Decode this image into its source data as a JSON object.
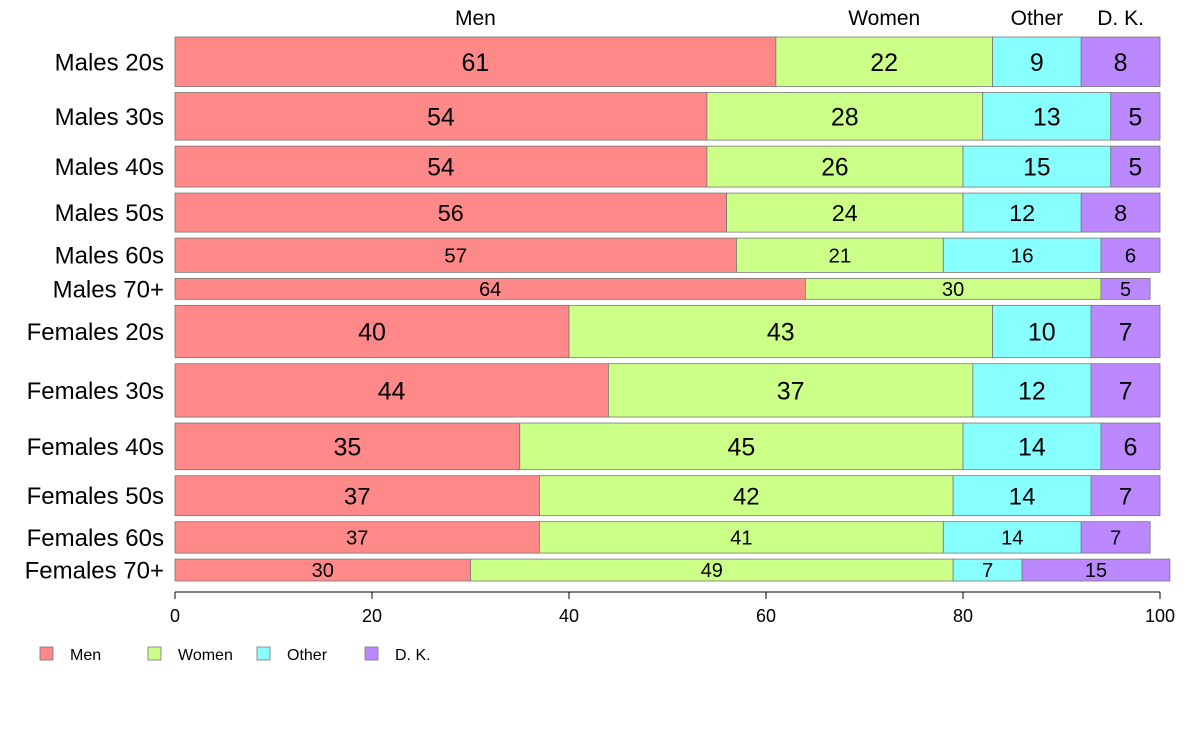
{
  "chart_data": {
    "type": "bar",
    "orientation": "horizontal",
    "stacked": true,
    "categories": [
      "Males 20s",
      "Males 30s",
      "Males 40s",
      "Males 50s",
      "Males 60s",
      "Males 70+",
      "Females 20s",
      "Females 30s",
      "Females 40s",
      "Females 50s",
      "Females 60s",
      "Females 70+"
    ],
    "category_weights": [
      52,
      50,
      43,
      41,
      36,
      22,
      55,
      56,
      49,
      42,
      33,
      23
    ],
    "series": [
      {
        "name": "Men",
        "color": "#ff8888",
        "values": [
          61,
          54,
          54,
          56,
          57,
          64,
          40,
          44,
          35,
          37,
          37,
          30
        ]
      },
      {
        "name": "Women",
        "color": "#ccff88",
        "values": [
          22,
          28,
          26,
          24,
          21,
          30,
          43,
          37,
          45,
          42,
          41,
          49
        ]
      },
      {
        "name": "Other",
        "color": "#88ffff",
        "values": [
          9,
          13,
          15,
          12,
          16,
          0,
          10,
          12,
          14,
          14,
          14,
          7
        ]
      },
      {
        "name": "D. K.",
        "color": "#bb88ff",
        "values": [
          8,
          5,
          5,
          8,
          6,
          5,
          7,
          7,
          6,
          7,
          7,
          15
        ]
      }
    ],
    "top_labels": [
      "Men",
      "Women",
      "Other",
      "D. K."
    ],
    "xlim": [
      0,
      100
    ],
    "xticks": [
      "0",
      "20",
      "40",
      "60",
      "80",
      "100"
    ],
    "title": "",
    "xlabel": "",
    "ylabel": "",
    "legend": {
      "placement": "bottom-left",
      "items": [
        "Men",
        "Women",
        "Other",
        "D. K."
      ]
    }
  }
}
